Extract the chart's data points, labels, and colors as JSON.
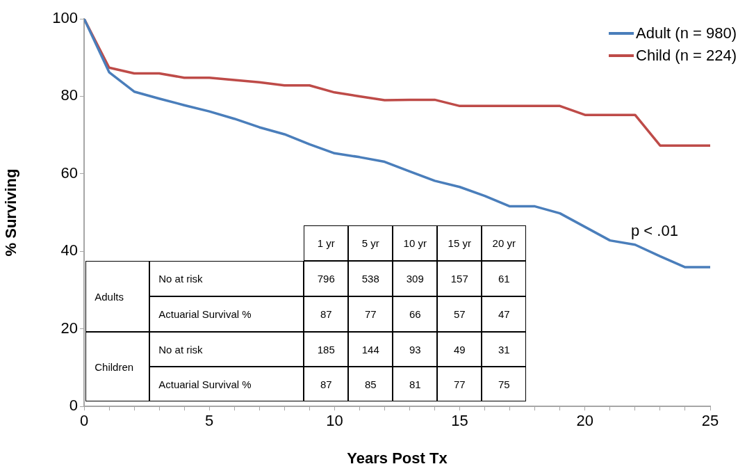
{
  "chart_data": {
    "type": "line",
    "xlabel": "Years Post Tx",
    "ylabel": "% Surviving",
    "x": [
      0,
      1,
      2,
      3,
      4,
      5,
      6,
      7,
      8,
      9,
      10,
      11,
      12,
      13,
      14,
      15,
      16,
      17,
      18,
      19,
      20,
      21,
      22,
      23,
      24,
      25
    ],
    "series": [
      {
        "name": "Adult (n = 980)",
        "color": "#4a7ebb",
        "values": [
          100,
          86.2,
          81.2,
          79.4,
          77.7,
          76.1,
          74.2,
          72,
          70.2,
          67.6,
          65.3,
          64.3,
          63.1,
          60.6,
          58.2,
          56.6,
          54.3,
          51.6,
          51.6,
          49.8,
          46.3,
          42.8,
          41.7,
          38.7,
          35.9,
          35.9
        ]
      },
      {
        "name": "Child (n = 224)",
        "color": "#be4b48",
        "values": [
          100,
          87.4,
          85.9,
          85.9,
          84.8,
          84.8,
          84.2,
          83.6,
          82.8,
          82.8,
          81,
          80,
          79,
          79.1,
          79.1,
          77.5,
          77.5,
          77.5,
          77.5,
          77.5,
          75.2,
          75.2,
          75.2,
          67.3,
          67.3,
          67.3
        ]
      }
    ],
    "xlim": [
      0,
      25
    ],
    "xticks": [
      0,
      {
        "value": 1,
        "label": null
      },
      {
        "value": 2,
        "label": null
      },
      {
        "value": 3,
        "label": null
      },
      {
        "value": 4,
        "label": null
      },
      5,
      {
        "value": 6,
        "label": null
      },
      {
        "value": 7,
        "label": null
      },
      {
        "value": 8,
        "label": null
      },
      {
        "value": 9,
        "label": null
      },
      10,
      {
        "value": 11,
        "label": null
      },
      {
        "value": 12,
        "label": null
      },
      {
        "value": 13,
        "label": null
      },
      {
        "value": 14,
        "label": null
      },
      15,
      {
        "value": 16,
        "label": null
      },
      {
        "value": 17,
        "label": null
      },
      {
        "value": 18,
        "label": null
      },
      {
        "value": 19,
        "label": null
      },
      20,
      {
        "value": 21,
        "label": null
      },
      {
        "value": 22,
        "label": null
      },
      {
        "value": 23,
        "label": null
      },
      {
        "value": 24,
        "label": null
      },
      25
    ],
    "ylim": [
      0,
      100
    ],
    "yticks": [
      0,
      20,
      40,
      60,
      80,
      100
    ],
    "grid": false,
    "legend": "top right",
    "marker": "none",
    "line_style": "solid",
    "annotations": [
      "p < .01",
      "1 yr",
      "5 yr",
      "10 yr",
      "15 yr",
      "20 yr",
      "Adults",
      "No at risk",
      "796",
      "538",
      "309",
      "157",
      "61",
      "Actuarial Survival %",
      "87",
      "77",
      "66",
      "57",
      "47",
      "Children",
      "No at risk",
      "185",
      "144",
      "93",
      "49",
      "31",
      "Actuarial Survival %",
      "87",
      "85",
      "81",
      "77",
      "75"
    ]
  }
}
